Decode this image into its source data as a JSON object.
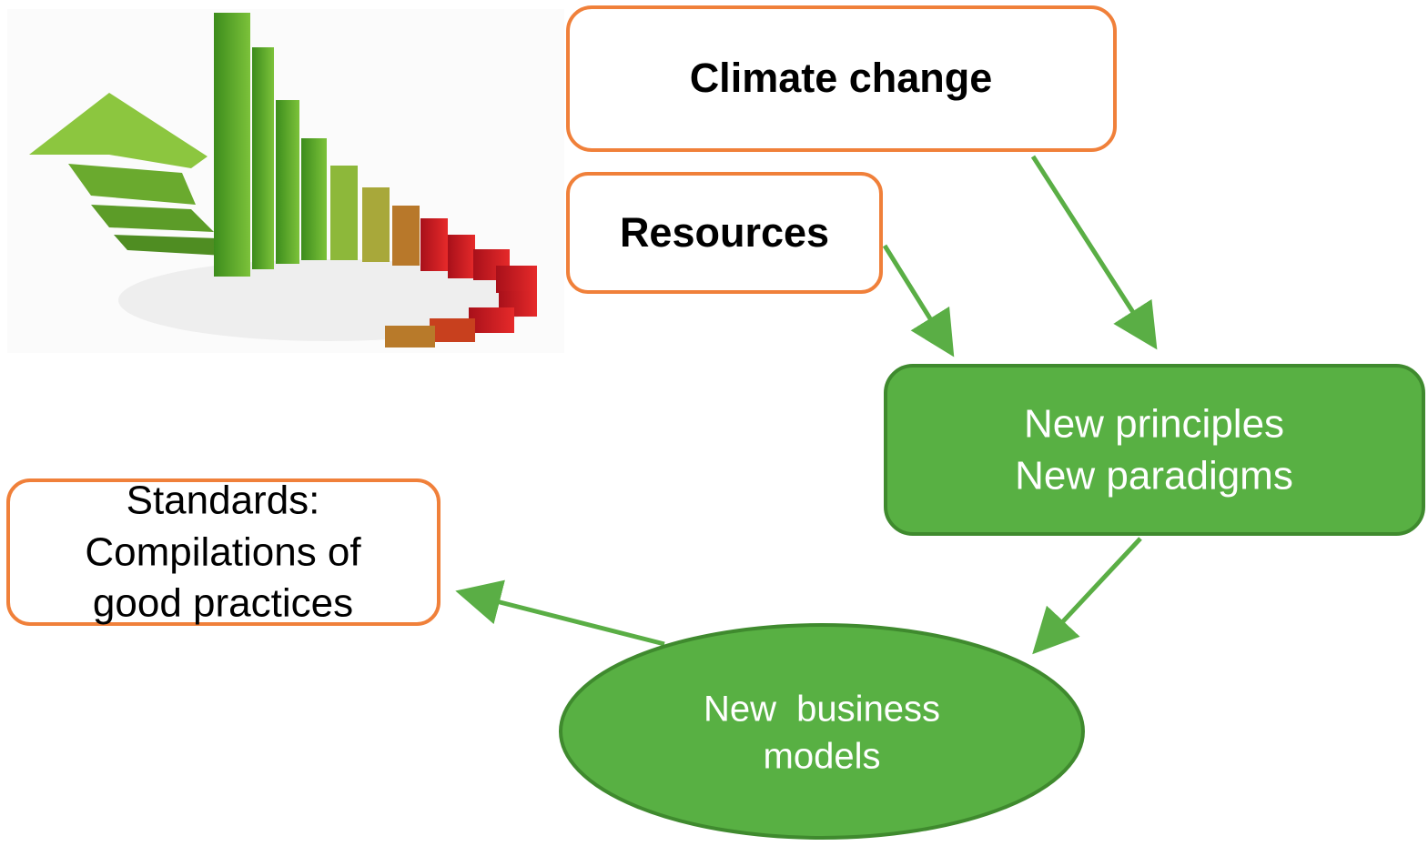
{
  "nodes": [
    {
      "label": "Climate change"
    },
    {
      "label": "Resources"
    },
    {
      "lines": [
        "New principles",
        "New paradigms"
      ]
    },
    {
      "lines": [
        "New  business",
        "models"
      ]
    },
    {
      "lines": [
        "Standards:",
        "Compilations of",
        "good practices"
      ]
    }
  ]
}
